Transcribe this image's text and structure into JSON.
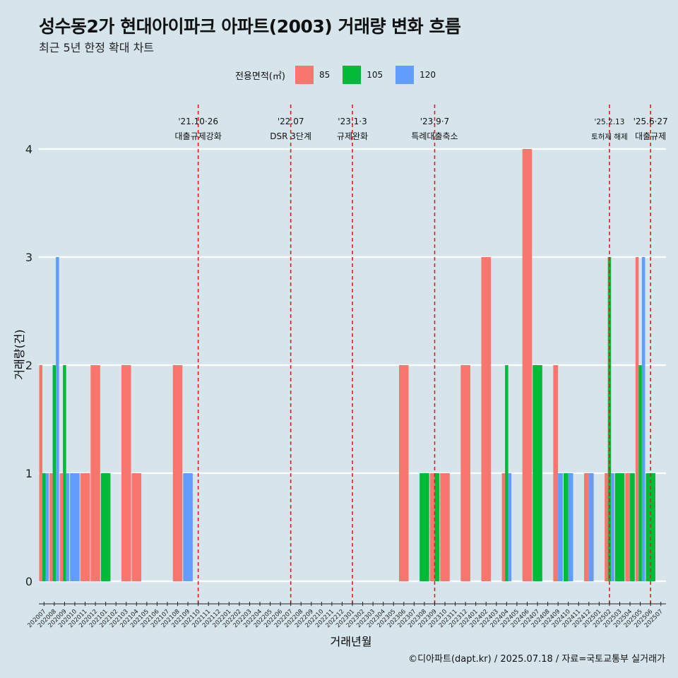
{
  "title": "성수동2가 현대아이파크 아파트(2003) 거래량 변화 흐름",
  "subtitle": "최근 5년 한정 확대 차트",
  "caption": "©디아파트(dapt.kr) / 2025.07.18 / 자료=국토교통부 실거래가",
  "legend": {
    "title": "전용면적(㎡)",
    "items": [
      {
        "label": "85",
        "color": "#F8766D"
      },
      {
        "label": "105",
        "color": "#00BA38"
      },
      {
        "label": "120",
        "color": "#619CFF"
      }
    ]
  },
  "chart_data": {
    "type": "bar",
    "xlabel": "거래년월",
    "ylabel": "거래량(건)",
    "ylim": [
      0,
      4
    ],
    "yticks": [
      0,
      1,
      2,
      3,
      4
    ],
    "grid": true,
    "legend_position": "top",
    "categories": [
      "202007",
      "202008",
      "202009",
      "202010",
      "202011",
      "202012",
      "202101",
      "202102",
      "202103",
      "202104",
      "202105",
      "202106",
      "202107",
      "202108",
      "202109",
      "202110",
      "202111",
      "202112",
      "202201",
      "202202",
      "202203",
      "202204",
      "202205",
      "202206",
      "202207",
      "202208",
      "202209",
      "202210",
      "202211",
      "202212",
      "202301",
      "202302",
      "202303",
      "202304",
      "202305",
      "202306",
      "202307",
      "202308",
      "202309",
      "202310",
      "202311",
      "202312",
      "202401",
      "202402",
      "202403",
      "202404",
      "202405",
      "202406",
      "202407",
      "202408",
      "202409",
      "202410",
      "202411",
      "202412",
      "202501",
      "202502",
      "202503",
      "202504",
      "202505",
      "202506",
      "202507"
    ],
    "series": [
      {
        "name": "85",
        "color": "#F8766D",
        "values": [
          2,
          1,
          1,
          0,
          1,
          2,
          0,
          0,
          2,
          1,
          0,
          0,
          0,
          2,
          0,
          0,
          0,
          0,
          0,
          0,
          0,
          0,
          0,
          0,
          0,
          0,
          0,
          0,
          0,
          0,
          0,
          0,
          0,
          0,
          0,
          2,
          0,
          0,
          1,
          1,
          0,
          2,
          0,
          3,
          0,
          1,
          0,
          4,
          0,
          0,
          2,
          0,
          0,
          1,
          0,
          1,
          0,
          1,
          3,
          0,
          0
        ]
      },
      {
        "name": "105",
        "color": "#00BA38",
        "values": [
          1,
          2,
          2,
          0,
          0,
          0,
          1,
          0,
          0,
          0,
          0,
          0,
          0,
          0,
          0,
          0,
          0,
          0,
          0,
          0,
          0,
          0,
          0,
          0,
          0,
          0,
          0,
          0,
          0,
          0,
          0,
          0,
          0,
          0,
          0,
          0,
          0,
          1,
          1,
          0,
          0,
          0,
          0,
          0,
          0,
          2,
          0,
          0,
          2,
          0,
          0,
          1,
          0,
          0,
          0,
          3,
          1,
          1,
          2,
          1,
          0
        ]
      },
      {
        "name": "120",
        "color": "#619CFF",
        "values": [
          1,
          3,
          1,
          1,
          0,
          0,
          0,
          0,
          0,
          0,
          0,
          0,
          0,
          0,
          1,
          0,
          0,
          0,
          0,
          0,
          0,
          0,
          0,
          0,
          0,
          0,
          0,
          0,
          0,
          0,
          0,
          0,
          0,
          0,
          0,
          0,
          0,
          0,
          0,
          0,
          0,
          0,
          0,
          0,
          0,
          1,
          0,
          0,
          0,
          0,
          1,
          1,
          0,
          1,
          0,
          1,
          0,
          0,
          3,
          0,
          0
        ]
      }
    ],
    "annotations": [
      {
        "month": "202110",
        "date": "'21.10·26",
        "label": "대출규제강화"
      },
      {
        "month": "202207",
        "date": "'22.07",
        "label": "DSR 3단계"
      },
      {
        "month": "202301",
        "date": "'23.1·3",
        "label": "규제완화"
      },
      {
        "month": "202309",
        "date": "'23.9·7",
        "label": "특례대출축소"
      },
      {
        "month": "202502",
        "date": "'25.2.13",
        "label": "토허제 해제"
      },
      {
        "month": "202506",
        "date": "'25.6·27",
        "label": "대출규제"
      }
    ]
  }
}
